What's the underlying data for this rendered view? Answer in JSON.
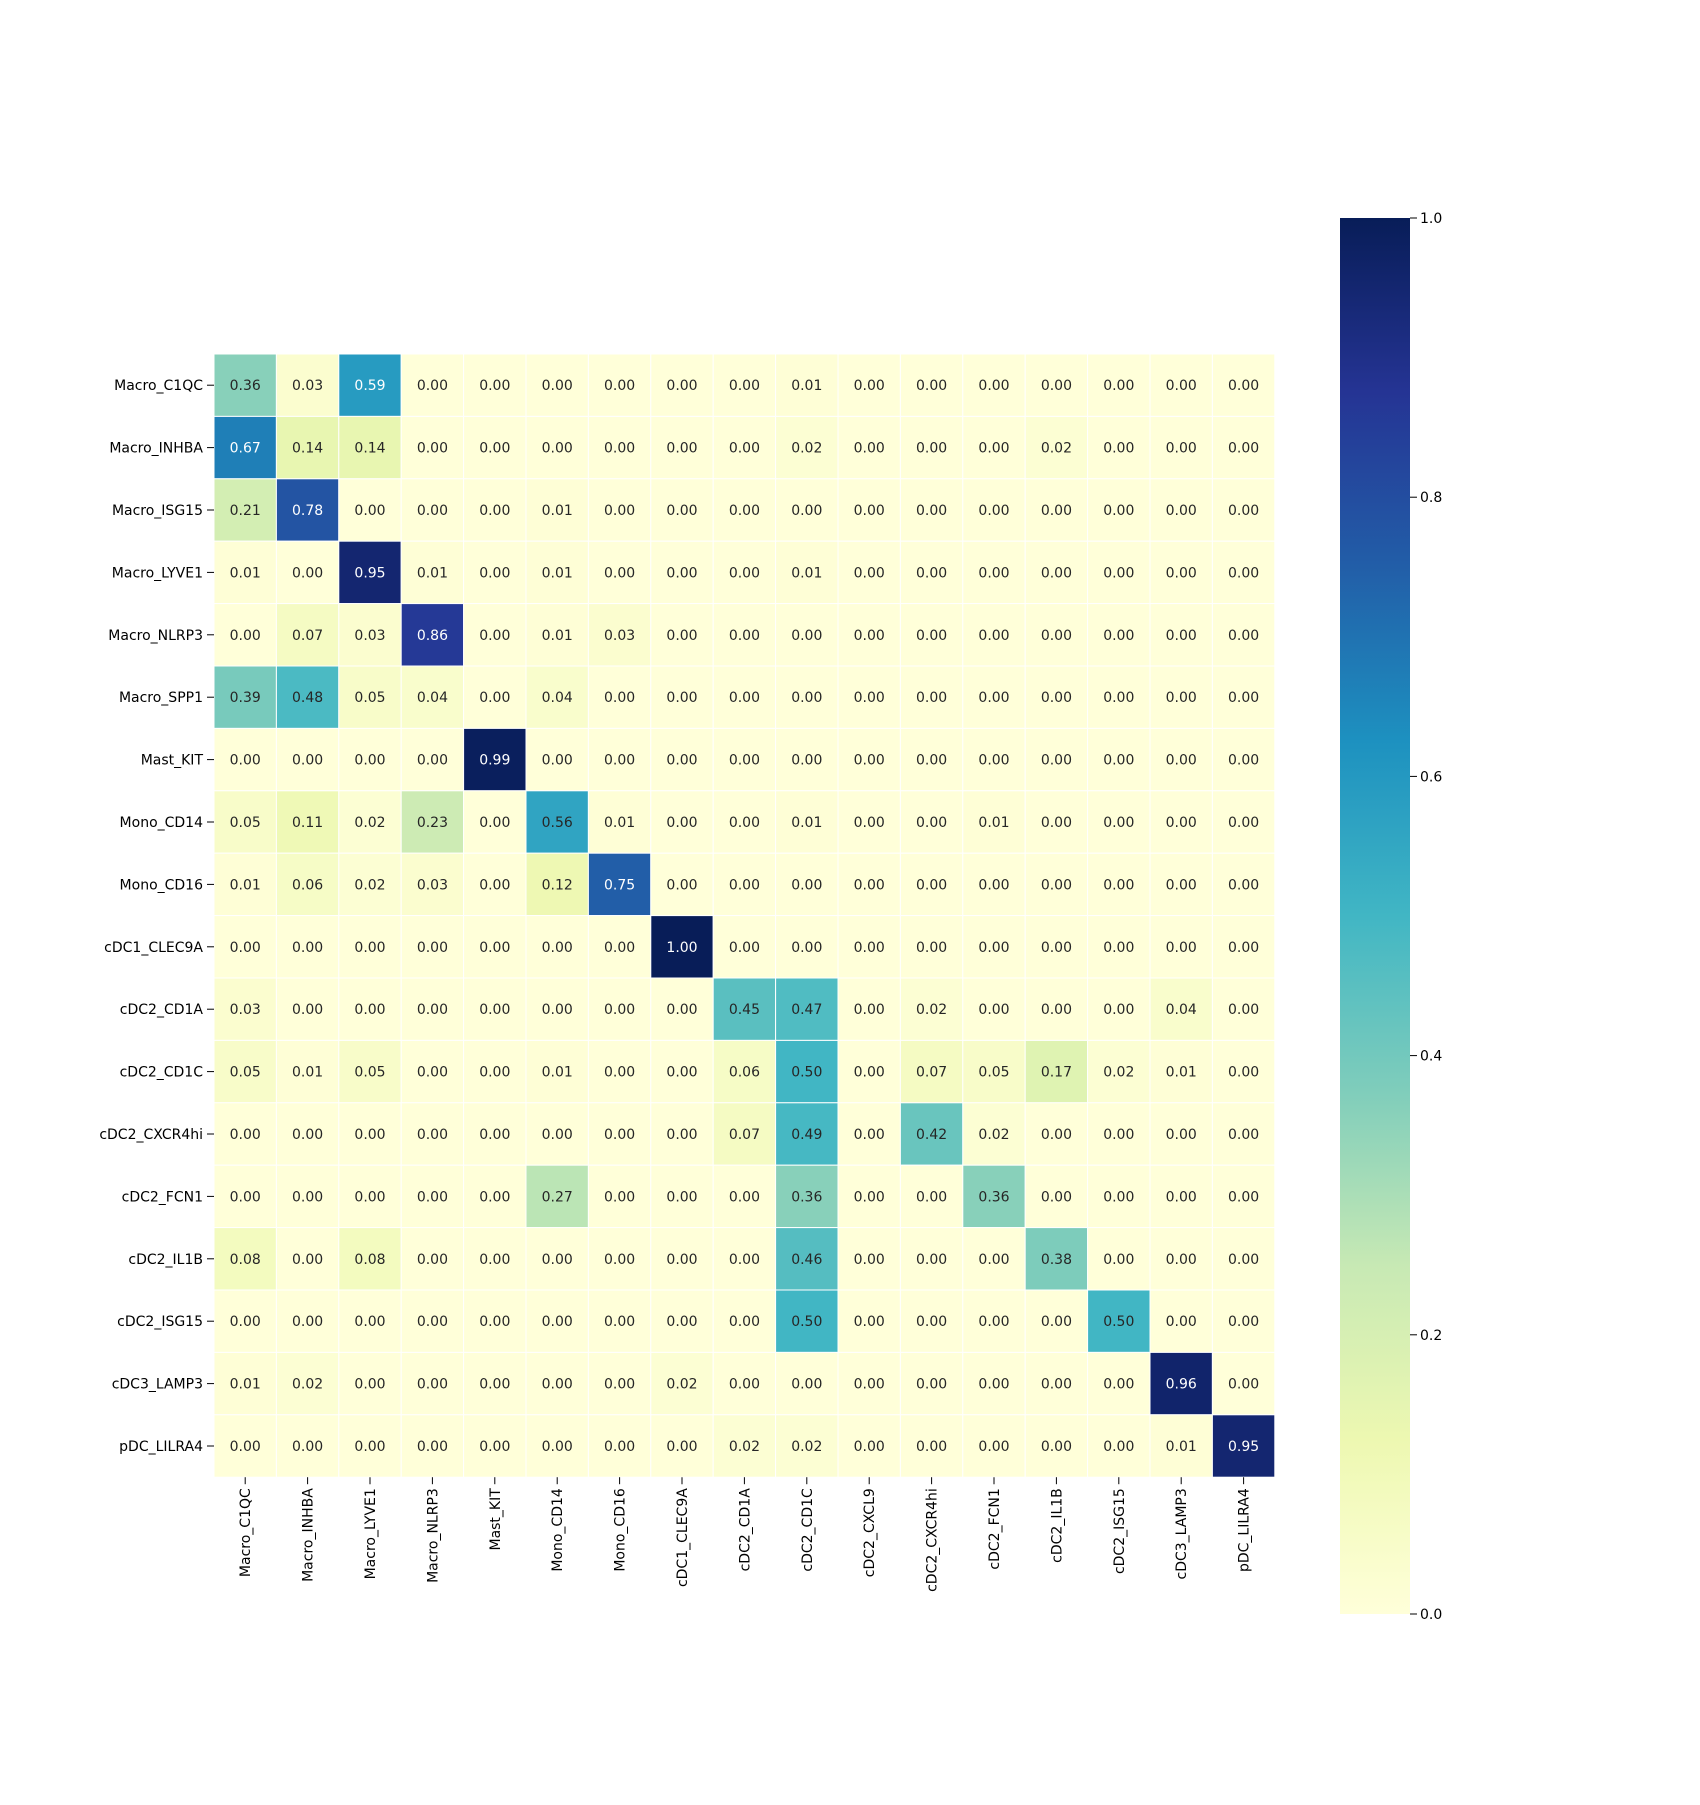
{
  "chart_data": {
    "type": "heatmap",
    "title": "",
    "xlabel": "",
    "ylabel": "",
    "colormap": "YlGnBu",
    "colormap_stops": [
      "#ffffd9",
      "#edf8b1",
      "#c7e9b4",
      "#7fcdbb",
      "#41b6c4",
      "#1d91c0",
      "#225ea8",
      "#253494",
      "#081d58"
    ],
    "value_range": [
      0.0,
      1.0
    ],
    "cell_border_color": "#ffffff",
    "annotation_format": "0.00",
    "rows": [
      "Macro_C1QC",
      "Macro_INHBA",
      "Macro_ISG15",
      "Macro_LYVE1",
      "Macro_NLRP3",
      "Macro_SPP1",
      "Mast_KIT",
      "Mono_CD14",
      "Mono_CD16",
      "cDC1_CLEC9A",
      "cDC2_CD1A",
      "cDC2_CD1C",
      "cDC2_CXCR4hi",
      "cDC2_FCN1",
      "cDC2_IL1B",
      "cDC2_ISG15",
      "cDC3_LAMP3",
      "pDC_LILRA4"
    ],
    "columns": [
      "Macro_C1QC",
      "Macro_INHBA",
      "Macro_LYVE1",
      "Macro_NLRP3",
      "Mast_KIT",
      "Mono_CD14",
      "Mono_CD16",
      "cDC1_CLEC9A",
      "cDC2_CD1A",
      "cDC2_CD1C",
      "cDC2_CXCL9",
      "cDC2_CXCR4hi",
      "cDC2_FCN1",
      "cDC2_IL1B",
      "cDC2_ISG15",
      "cDC3_LAMP3",
      "pDC_LILRA4"
    ],
    "values": [
      [
        0.36,
        0.03,
        0.59,
        0.0,
        0.0,
        0.0,
        0.0,
        0.0,
        0.0,
        0.01,
        0.0,
        0.0,
        0.0,
        0.0,
        0.0,
        0.0,
        0.0
      ],
      [
        0.67,
        0.14,
        0.14,
        0.0,
        0.0,
        0.0,
        0.0,
        0.0,
        0.0,
        0.02,
        0.0,
        0.0,
        0.0,
        0.02,
        0.0,
        0.0,
        0.0
      ],
      [
        0.21,
        0.78,
        0.0,
        0.0,
        0.0,
        0.01,
        0.0,
        0.0,
        0.0,
        0.0,
        0.0,
        0.0,
        0.0,
        0.0,
        0.0,
        0.0,
        0.0
      ],
      [
        0.01,
        0.0,
        0.95,
        0.01,
        0.0,
        0.01,
        0.0,
        0.0,
        0.0,
        0.01,
        0.0,
        0.0,
        0.0,
        0.0,
        0.0,
        0.0,
        0.0
      ],
      [
        0.0,
        0.07,
        0.03,
        0.86,
        0.0,
        0.01,
        0.03,
        0.0,
        0.0,
        0.0,
        0.0,
        0.0,
        0.0,
        0.0,
        0.0,
        0.0,
        0.0
      ],
      [
        0.39,
        0.48,
        0.05,
        0.04,
        0.0,
        0.04,
        0.0,
        0.0,
        0.0,
        0.0,
        0.0,
        0.0,
        0.0,
        0.0,
        0.0,
        0.0,
        0.0
      ],
      [
        0.0,
        0.0,
        0.0,
        0.0,
        0.99,
        0.0,
        0.0,
        0.0,
        0.0,
        0.0,
        0.0,
        0.0,
        0.0,
        0.0,
        0.0,
        0.0,
        0.0
      ],
      [
        0.05,
        0.11,
        0.02,
        0.23,
        0.0,
        0.56,
        0.01,
        0.0,
        0.0,
        0.01,
        0.0,
        0.0,
        0.01,
        0.0,
        0.0,
        0.0,
        0.0
      ],
      [
        0.01,
        0.06,
        0.02,
        0.03,
        0.0,
        0.12,
        0.75,
        0.0,
        0.0,
        0.0,
        0.0,
        0.0,
        0.0,
        0.0,
        0.0,
        0.0,
        0.0
      ],
      [
        0.0,
        0.0,
        0.0,
        0.0,
        0.0,
        0.0,
        0.0,
        1.0,
        0.0,
        0.0,
        0.0,
        0.0,
        0.0,
        0.0,
        0.0,
        0.0,
        0.0
      ],
      [
        0.03,
        0.0,
        0.0,
        0.0,
        0.0,
        0.0,
        0.0,
        0.0,
        0.45,
        0.47,
        0.0,
        0.02,
        0.0,
        0.0,
        0.0,
        0.04,
        0.0
      ],
      [
        0.05,
        0.01,
        0.05,
        0.0,
        0.0,
        0.01,
        0.0,
        0.0,
        0.06,
        0.5,
        0.0,
        0.07,
        0.05,
        0.17,
        0.02,
        0.01,
        0.0
      ],
      [
        0.0,
        0.0,
        0.0,
        0.0,
        0.0,
        0.0,
        0.0,
        0.0,
        0.07,
        0.49,
        0.0,
        0.42,
        0.02,
        0.0,
        0.0,
        0.0,
        0.0
      ],
      [
        0.0,
        0.0,
        0.0,
        0.0,
        0.0,
        0.27,
        0.0,
        0.0,
        0.0,
        0.36,
        0.0,
        0.0,
        0.36,
        0.0,
        0.0,
        0.0,
        0.0
      ],
      [
        0.08,
        0.0,
        0.08,
        0.0,
        0.0,
        0.0,
        0.0,
        0.0,
        0.0,
        0.46,
        0.0,
        0.0,
        0.0,
        0.38,
        0.0,
        0.0,
        0.0
      ],
      [
        0.0,
        0.0,
        0.0,
        0.0,
        0.0,
        0.0,
        0.0,
        0.0,
        0.0,
        0.5,
        0.0,
        0.0,
        0.0,
        0.0,
        0.5,
        0.0,
        0.0
      ],
      [
        0.01,
        0.02,
        0.0,
        0.0,
        0.0,
        0.0,
        0.0,
        0.02,
        0.0,
        0.0,
        0.0,
        0.0,
        0.0,
        0.0,
        0.0,
        0.96,
        0.0
      ],
      [
        0.0,
        0.0,
        0.0,
        0.0,
        0.0,
        0.0,
        0.0,
        0.0,
        0.02,
        0.02,
        0.0,
        0.0,
        0.0,
        0.0,
        0.0,
        0.01,
        0.95
      ]
    ],
    "colorbar": {
      "ticks": [
        0.0,
        0.2,
        0.4,
        0.6,
        0.8,
        1.0
      ],
      "tick_labels": [
        "0.0",
        "0.2",
        "0.4",
        "0.6",
        "0.8",
        "1.0"
      ]
    },
    "legend": "none",
    "grid": false
  }
}
